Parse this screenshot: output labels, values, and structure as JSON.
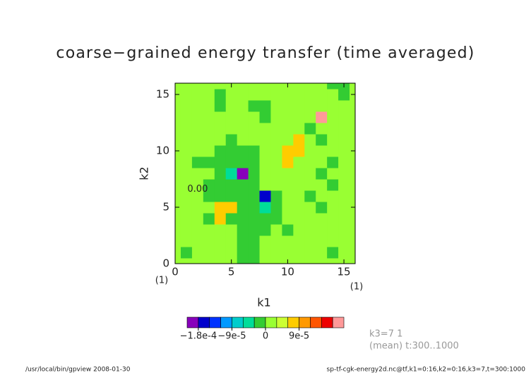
{
  "chart_data": {
    "type": "contour",
    "title": "coarse−grained energy transfer (time averaged)",
    "xlabel": "k1",
    "ylabel": "k2",
    "x_note": "(1)",
    "y_note": "(1)",
    "xlim": [
      0,
      16
    ],
    "ylim": [
      0,
      16
    ],
    "xticks": [
      0,
      5,
      10,
      15
    ],
    "yticks": [
      0,
      5,
      10,
      15
    ],
    "annotation": "0.00",
    "info": [
      "k3=7 1",
      "(mean) t:300..1000"
    ],
    "footer_left": "/usr/local/bin/gpview   2008-01-30",
    "footer_right": "sp-tf-cgk-energy2d.nc@tf,k1=0:16,k2=0:16,k3=7,t=300:1000",
    "colorbar": {
      "lim": [
        -0.00021,
        0.00021
      ],
      "ticks": [
        {
          "value": -0.00018,
          "label": "−1.8e-4"
        },
        {
          "value": -9e-05,
          "label": "−9e-5"
        },
        0,
        {
          "value": 9e-05,
          "label": "9e-5"
        }
      ],
      "colors": [
        "#8800bb",
        "#0000cc",
        "#0033ff",
        "#0099ff",
        "#00cccc",
        "#00dd99",
        "#33cc33",
        "#99ff33",
        "#ccff33",
        "#ffcc00",
        "#ff9900",
        "#ff5500",
        "#ee0000",
        "#ff9999"
      ]
    },
    "z": [
      [
        1e-05,
        1e-05,
        1e-05,
        1e-05,
        1e-05,
        1e-05,
        -1e-05,
        -1e-05,
        1e-05,
        1e-05,
        1e-05,
        1e-05,
        1e-05,
        1e-05,
        1e-05,
        1e-05,
        1e-05
      ],
      [
        1e-05,
        -1e-05,
        1e-05,
        1e-05,
        1e-05,
        1e-05,
        -1e-05,
        -1e-05,
        1e-05,
        1e-05,
        1e-05,
        1e-05,
        1e-05,
        1e-05,
        -1e-05,
        1e-05,
        1e-05
      ],
      [
        1e-05,
        1e-05,
        1e-05,
        1e-05,
        1e-05,
        1e-05,
        -1e-05,
        -1e-05,
        1e-05,
        1e-05,
        1e-05,
        1e-05,
        1e-05,
        1e-05,
        1e-05,
        1e-05,
        1e-05
      ],
      [
        1e-05,
        1e-05,
        1e-05,
        1e-05,
        1e-05,
        1e-05,
        -1e-05,
        -1e-05,
        -1e-05,
        1e-05,
        -1e-05,
        1e-05,
        1e-05,
        1e-05,
        1e-05,
        1e-05,
        1e-05
      ],
      [
        1e-05,
        1e-05,
        1e-05,
        -1e-05,
        7e-05,
        -1e-05,
        -1e-05,
        -1e-05,
        -1e-05,
        -1e-05,
        1e-05,
        1e-05,
        1e-05,
        1e-05,
        1e-05,
        1e-05,
        1e-05
      ],
      [
        1e-05,
        1e-05,
        1e-05,
        1e-05,
        7e-05,
        7e-05,
        -1e-05,
        -1e-05,
        -6e-05,
        -1e-05,
        1e-05,
        1e-05,
        1e-05,
        -1e-05,
        1e-05,
        1e-05,
        1e-05
      ],
      [
        1e-05,
        1e-05,
        1e-05,
        -1e-05,
        -1e-05,
        -1e-05,
        -1e-05,
        -1e-05,
        -0.00017,
        -1e-05,
        1e-05,
        1e-05,
        -1e-05,
        1e-05,
        1e-05,
        1e-05,
        1e-05
      ],
      [
        1e-05,
        1e-05,
        1e-05,
        -1e-05,
        -1e-05,
        -1e-05,
        -1e-05,
        -1e-05,
        1e-05,
        1e-05,
        1e-05,
        1e-05,
        1e-05,
        1e-05,
        -1e-05,
        1e-05,
        1e-05
      ],
      [
        1e-05,
        1e-05,
        1e-05,
        1e-05,
        -1e-05,
        -5e-05,
        -0.00019,
        -1e-05,
        1e-05,
        1e-05,
        1e-05,
        1e-05,
        1e-05,
        -1e-05,
        1e-05,
        1e-05,
        1e-05
      ],
      [
        1e-05,
        1e-05,
        -1e-05,
        -1e-05,
        -1e-05,
        -1e-05,
        -1e-05,
        -1e-05,
        1e-05,
        1e-05,
        7e-05,
        1e-05,
        1e-05,
        1e-05,
        -1e-05,
        1e-05,
        1e-05
      ],
      [
        1e-05,
        1e-05,
        1e-05,
        1e-05,
        -1e-05,
        -1e-05,
        -1e-05,
        -1e-05,
        1e-05,
        1e-05,
        7e-05,
        7e-05,
        1e-05,
        1e-05,
        1e-05,
        1e-05,
        1e-05
      ],
      [
        1e-05,
        1e-05,
        1e-05,
        1e-05,
        1e-05,
        -1e-05,
        1e-05,
        1e-05,
        1e-05,
        1e-05,
        1e-05,
        7e-05,
        1e-05,
        -1e-05,
        1e-05,
        1e-05,
        1e-05
      ],
      [
        1e-05,
        1e-05,
        1e-05,
        1e-05,
        1e-05,
        1e-05,
        1e-05,
        1e-05,
        1e-05,
        1e-05,
        1e-05,
        1e-05,
        -1e-05,
        1e-05,
        1e-05,
        1e-05,
        1e-05
      ],
      [
        1e-05,
        1e-05,
        1e-05,
        1e-05,
        1e-05,
        1e-05,
        1e-05,
        1e-05,
        -1e-05,
        1e-05,
        1e-05,
        1e-05,
        1e-05,
        0.0002,
        1e-05,
        1e-05,
        1e-05
      ],
      [
        1e-05,
        1e-05,
        1e-05,
        1e-05,
        -1e-05,
        1e-05,
        1e-05,
        -1e-05,
        -1e-05,
        1e-05,
        1e-05,
        1e-05,
        1e-05,
        1e-05,
        1e-05,
        1e-05,
        1e-05
      ],
      [
        1e-05,
        1e-05,
        1e-05,
        1e-05,
        -1e-05,
        1e-05,
        1e-05,
        1e-05,
        1e-05,
        1e-05,
        1e-05,
        1e-05,
        1e-05,
        1e-05,
        1e-05,
        -1e-05,
        1e-05
      ],
      [
        1e-05,
        1e-05,
        1e-05,
        1e-05,
        1e-05,
        1e-05,
        1e-05,
        1e-05,
        1e-05,
        1e-05,
        1e-05,
        1e-05,
        1e-05,
        1e-05,
        -1e-05,
        -1e-05,
        1e-05
      ]
    ]
  }
}
